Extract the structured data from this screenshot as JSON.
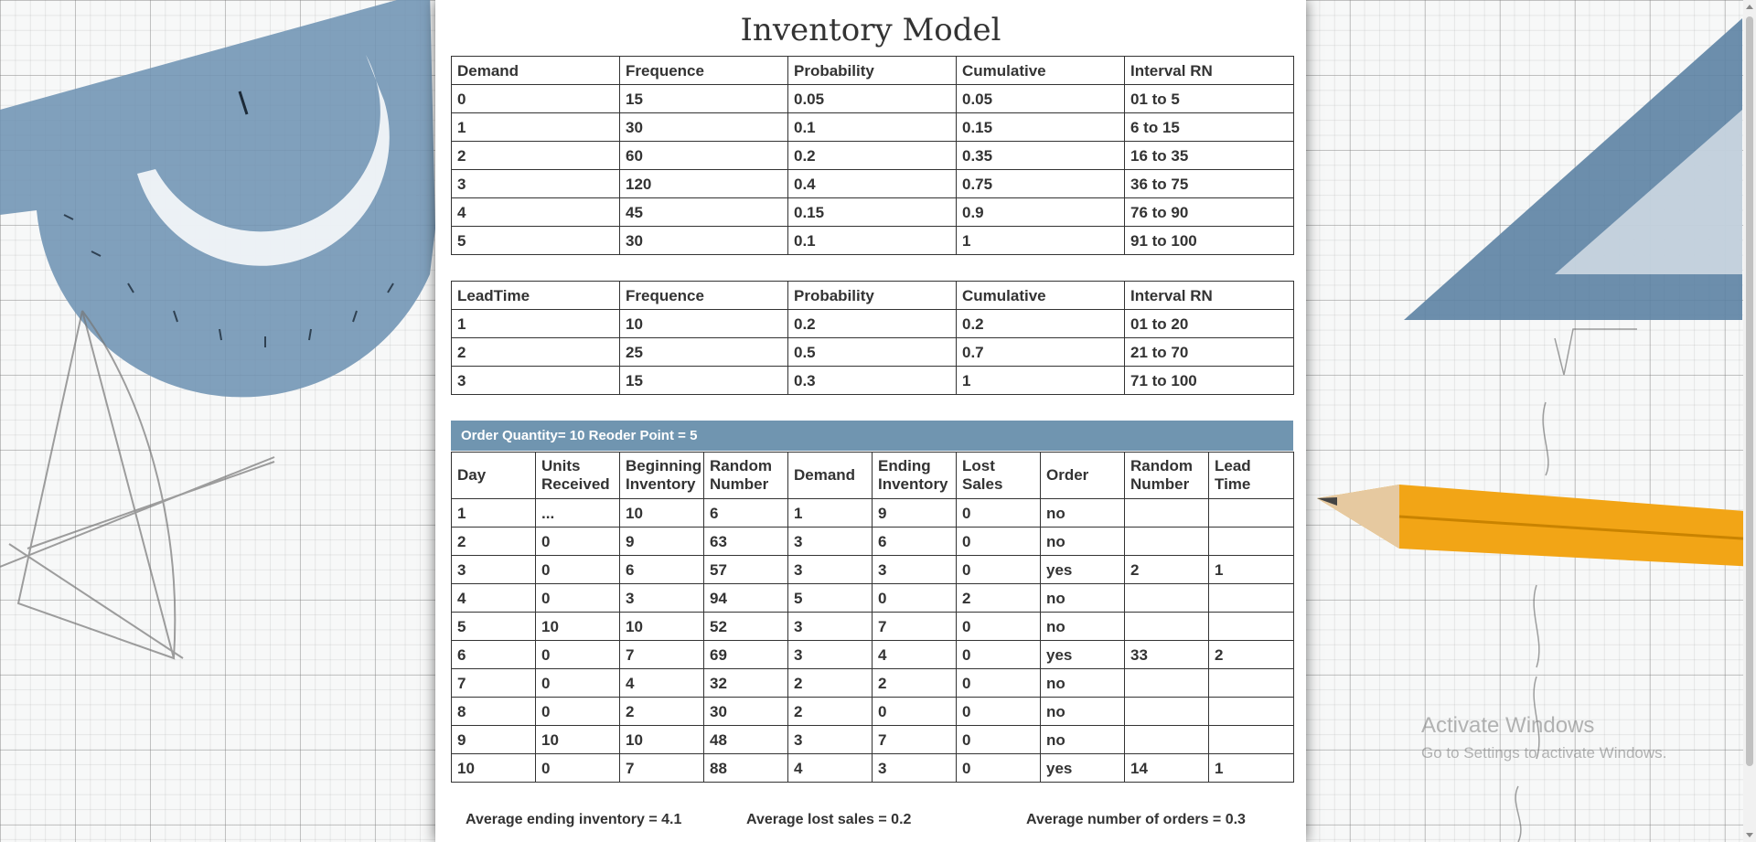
{
  "page": {
    "title": "Inventory Model"
  },
  "demand_table": {
    "headers": [
      "Demand",
      "Frequence",
      "Probability",
      "Cumulative",
      "Interval RN"
    ],
    "rows": [
      [
        "0",
        "15",
        "0.05",
        "0.05",
        "01 to 5"
      ],
      [
        "1",
        "30",
        "0.1",
        "0.15",
        "6 to 15"
      ],
      [
        "2",
        "60",
        "0.2",
        "0.35",
        "16 to 35"
      ],
      [
        "3",
        "120",
        "0.4",
        "0.75",
        "36 to 75"
      ],
      [
        "4",
        "45",
        "0.15",
        "0.9",
        "76 to 90"
      ],
      [
        "5",
        "30",
        "0.1",
        "1",
        "91 to 100"
      ]
    ]
  },
  "lead_table": {
    "headers": [
      "LeadTime",
      "Frequence",
      "Probability",
      "Cumulative",
      "Interval RN"
    ],
    "rows": [
      [
        "1",
        "10",
        "0.2",
        "0.2",
        "01 to 20"
      ],
      [
        "2",
        "25",
        "0.5",
        "0.7",
        "21 to 70"
      ],
      [
        "3",
        "15",
        "0.3",
        "1",
        "71 to 100"
      ]
    ]
  },
  "banner": {
    "text": "Order Quantity= 10 Reoder Point = 5"
  },
  "sim_table": {
    "headers": [
      "Day",
      "Units Received",
      "Beginning Inventory",
      "Random Number",
      "Demand",
      "Ending Inventory",
      "Lost Sales",
      "Order",
      "Random Number",
      "Lead Time"
    ],
    "rows": [
      [
        "1",
        "...",
        "10",
        "6",
        "1",
        "9",
        "0",
        "no",
        "",
        ""
      ],
      [
        "2",
        "0",
        "9",
        "63",
        "3",
        "6",
        "0",
        "no",
        "",
        ""
      ],
      [
        "3",
        "0",
        "6",
        "57",
        "3",
        "3",
        "0",
        "yes",
        "2",
        "1"
      ],
      [
        "4",
        "0",
        "3",
        "94",
        "5",
        "0",
        "2",
        "no",
        "",
        ""
      ],
      [
        "5",
        "10",
        "10",
        "52",
        "3",
        "7",
        "0",
        "no",
        "",
        ""
      ],
      [
        "6",
        "0",
        "7",
        "69",
        "3",
        "4",
        "0",
        "yes",
        "33",
        "2"
      ],
      [
        "7",
        "0",
        "4",
        "32",
        "2",
        "2",
        "0",
        "no",
        "",
        ""
      ],
      [
        "8",
        "0",
        "2",
        "30",
        "2",
        "0",
        "0",
        "no",
        "",
        ""
      ],
      [
        "9",
        "10",
        "10",
        "48",
        "3",
        "7",
        "0",
        "no",
        "",
        ""
      ],
      [
        "10",
        "0",
        "7",
        "88",
        "4",
        "3",
        "0",
        "yes",
        "14",
        "1"
      ]
    ]
  },
  "summary": {
    "avg_ending_inventory": "Average ending inventory = 4.1",
    "avg_lost_sales": "Average lost sales = 0.2",
    "avg_orders": "Average number of orders = 0.3"
  },
  "watermark": {
    "line1": "Activate Windows",
    "line2": "Go to Settings to activate Windows."
  },
  "background_icons": [
    "protractor-icon",
    "triangle-ruler-icon",
    "pencil-icon",
    "sketch-drawing-icon"
  ],
  "colors": {
    "banner": "#7095b0",
    "panel": "#ffffff",
    "protractor": "#6f93b3",
    "pencil": "#f2a516"
  }
}
